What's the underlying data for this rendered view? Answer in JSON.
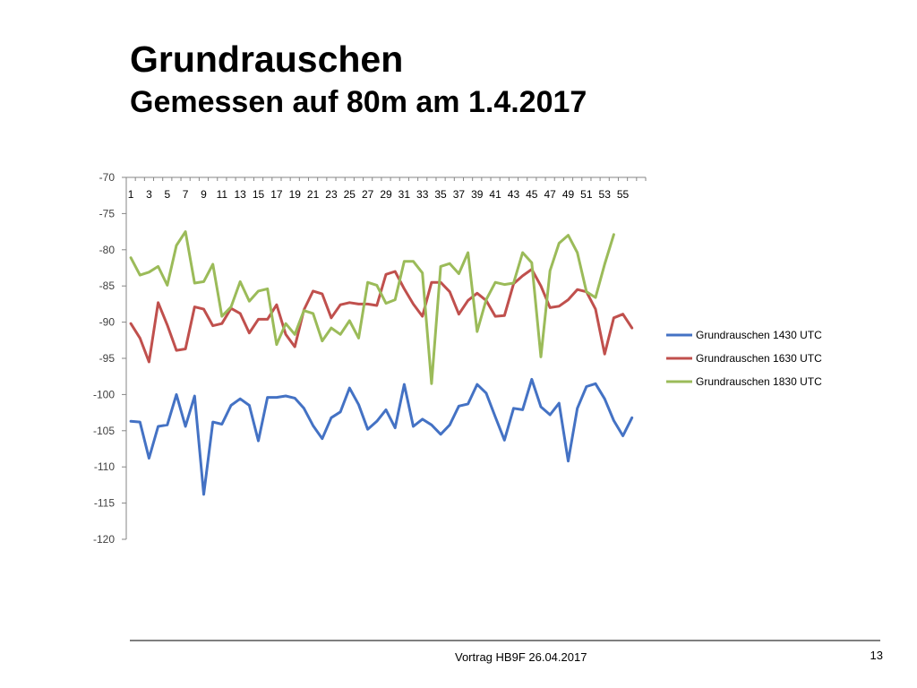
{
  "slide": {
    "title": "Grundrauschen",
    "subtitle": "Gemessen auf 80m am 1.4.2017",
    "footer": "Vortrag HB9F 26.04.2017",
    "page_number": "13"
  },
  "chart_data": {
    "type": "line",
    "title": "",
    "xlabel": "",
    "ylabel": "",
    "x_ticks_labelled": [
      1,
      3,
      5,
      7,
      9,
      11,
      13,
      15,
      17,
      19,
      21,
      23,
      25,
      27,
      29,
      31,
      33,
      35,
      37,
      39,
      41,
      43,
      45,
      47,
      49,
      51,
      53,
      55
    ],
    "x_axis_position": "top",
    "x_range": [
      1,
      57
    ],
    "ylim": [
      -120,
      -70
    ],
    "y_ticks": [
      -70,
      -75,
      -80,
      -85,
      -90,
      -95,
      -100,
      -105,
      -110,
      -115,
      -120
    ],
    "grid": false,
    "legend": "right",
    "series": [
      {
        "name": "Grundrauschen 1430 UTC",
        "color": "#4472c4",
        "values": [
          -103.7,
          -103.8,
          -108.8,
          -104.4,
          -104.2,
          -100.0,
          -104.4,
          -100.2,
          -113.8,
          -103.8,
          -104.1,
          -101.5,
          -100.6,
          -101.5,
          -106.4,
          -100.4,
          -100.4,
          -100.2,
          -100.5,
          -101.9,
          -104.3,
          -106.1,
          -103.2,
          -102.4,
          -99.1,
          -101.4,
          -104.8,
          -103.7,
          -102.1,
          -104.6,
          -98.6,
          -104.4,
          -103.4,
          -104.2,
          -105.5,
          -104.2,
          -101.6,
          -101.3,
          -98.6,
          -99.8,
          -103.1,
          -106.3,
          -101.9,
          -102.1,
          -97.9,
          -101.7,
          -102.8,
          -101.2,
          -109.2,
          -101.9,
          -98.9,
          -98.5,
          -100.6,
          -103.6,
          -105.7,
          -103.2
        ]
      },
      {
        "name": "Grundrauschen 1630 UTC",
        "color": "#c0504d",
        "values": [
          -90.2,
          -92.2,
          -95.5,
          -87.3,
          -90.4,
          -93.9,
          -93.7,
          -87.9,
          -88.2,
          -90.5,
          -90.2,
          -88.1,
          -88.8,
          -91.5,
          -89.6,
          -89.6,
          -87.6,
          -91.7,
          -93.4,
          -88.3,
          -85.7,
          -86.1,
          -89.4,
          -87.6,
          -87.3,
          -87.5,
          -87.5,
          -87.7,
          -83.4,
          -83.0,
          -85.4,
          -87.5,
          -89.2,
          -84.5,
          -84.5,
          -85.8,
          -88.9,
          -87.0,
          -86.0,
          -87.0,
          -89.2,
          -89.1,
          -84.7,
          -83.6,
          -82.7,
          -85.0,
          -88.0,
          -87.8,
          -86.9,
          -85.5,
          -85.8,
          -88.2,
          -94.4,
          -89.4,
          -88.9,
          -90.8
        ]
      },
      {
        "name": "Grundrauschen 1830 UTC",
        "color": "#9bbb59",
        "values": [
          -81.1,
          -83.5,
          -83.1,
          -82.3,
          -84.9,
          -79.4,
          -77.5,
          -84.6,
          -84.4,
          -82.0,
          -89.2,
          -87.9,
          -84.4,
          -87.1,
          -85.7,
          -85.4,
          -93.1,
          -90.2,
          -91.7,
          -88.4,
          -88.8,
          -92.6,
          -90.8,
          -91.7,
          -89.8,
          -92.2,
          -84.5,
          -84.9,
          -87.4,
          -86.9,
          -81.6,
          -81.6,
          -83.2,
          -98.5,
          -82.3,
          -81.9,
          -83.3,
          -80.4,
          -91.3,
          -86.9,
          -84.5,
          -84.8,
          -84.6,
          -80.4,
          -81.8,
          -94.8,
          -82.9,
          -79.1,
          -78.0,
          -80.4,
          -85.8,
          -86.6,
          -82.0,
          -77.9
        ]
      }
    ]
  }
}
